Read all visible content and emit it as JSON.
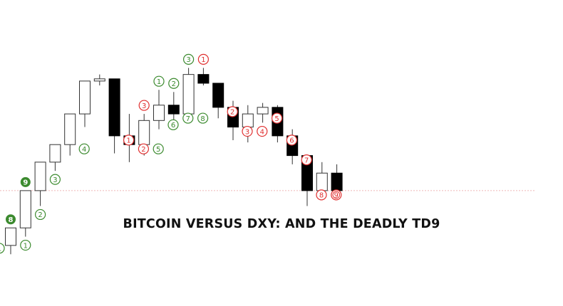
{
  "title": "BITCOIN VERSUS DXY: AND THE DEADLY TD9",
  "chart_data": {
    "type": "candlestick",
    "title": "BITCOIN VERSUS DXY: AND THE DEADLY TD9",
    "xlabel": "",
    "ylabel": "",
    "ylim": [
      0,
      100
    ],
    "grid": false,
    "reference_line": 39,
    "colors": {
      "bull_border": "#333333",
      "bear_fill": "#000000",
      "buy_setup": "#3b8a2e",
      "sell_setup": "#e03030",
      "reference_line": "#e8a0a0"
    },
    "candles": [
      {
        "i": 0,
        "o": 14,
        "h": 22,
        "l": 10,
        "c": 22
      },
      {
        "i": 1,
        "o": 22,
        "h": 39,
        "l": 18,
        "c": 39
      },
      {
        "i": 2,
        "o": 39,
        "h": 52,
        "l": 32,
        "c": 52
      },
      {
        "i": 3,
        "o": 52,
        "h": 60,
        "l": 48,
        "c": 60
      },
      {
        "i": 4,
        "o": 60,
        "h": 74,
        "l": 55,
        "c": 74
      },
      {
        "i": 5,
        "o": 74,
        "h": 89,
        "l": 68,
        "c": 89
      },
      {
        "i": 6,
        "o": 89,
        "h": 92,
        "l": 87,
        "c": 90
      },
      {
        "i": 7,
        "o": 90,
        "h": 90,
        "l": 56,
        "c": 64
      },
      {
        "i": 8,
        "o": 64,
        "h": 74,
        "l": 52,
        "c": 60
      },
      {
        "i": 9,
        "o": 60,
        "h": 74,
        "l": 55,
        "c": 71
      },
      {
        "i": 10,
        "o": 71,
        "h": 85,
        "l": 67,
        "c": 78
      },
      {
        "i": 11,
        "o": 78,
        "h": 84,
        "l": 67,
        "c": 74
      },
      {
        "i": 12,
        "o": 74,
        "h": 95,
        "l": 72,
        "c": 92
      },
      {
        "i": 13,
        "o": 92,
        "h": 95,
        "l": 87,
        "c": 88
      },
      {
        "i": 14,
        "o": 88,
        "h": 88,
        "l": 72,
        "c": 77
      },
      {
        "i": 15,
        "o": 77,
        "h": 80,
        "l": 62,
        "c": 68
      },
      {
        "i": 16,
        "o": 68,
        "h": 78,
        "l": 61,
        "c": 74
      },
      {
        "i": 17,
        "o": 74,
        "h": 79,
        "l": 70,
        "c": 77
      },
      {
        "i": 18,
        "o": 77,
        "h": 78,
        "l": 61,
        "c": 64
      },
      {
        "i": 19,
        "o": 64,
        "h": 67,
        "l": 51,
        "c": 55
      },
      {
        "i": 20,
        "o": 55,
        "h": 55,
        "l": 32,
        "c": 39
      },
      {
        "i": 21,
        "o": 39,
        "h": 52,
        "l": 36,
        "c": 47
      },
      {
        "i": 22,
        "o": 47,
        "h": 51,
        "l": 37,
        "c": 39
      }
    ],
    "td_counts": [
      {
        "candle": 0,
        "label": "1",
        "kind": "buy",
        "style": "outline",
        "pos": "left"
      },
      {
        "candle": 1,
        "label": "1",
        "kind": "buy",
        "style": "outline",
        "pos": "below"
      },
      {
        "candle": 0,
        "label": "8",
        "kind": "buy",
        "style": "filled",
        "pos": "above"
      },
      {
        "candle": 2,
        "label": "2",
        "kind": "buy",
        "style": "outline",
        "pos": "below"
      },
      {
        "candle": 1,
        "label": "9",
        "kind": "buy",
        "style": "filled",
        "pos": "above"
      },
      {
        "candle": 3,
        "label": "3",
        "kind": "buy",
        "style": "outline",
        "pos": "below"
      },
      {
        "candle": 4,
        "label": "4",
        "kind": "buy",
        "style": "outline",
        "pos": "right"
      },
      {
        "candle": 7,
        "label": "1",
        "kind": "sell",
        "style": "outline",
        "pos": "right"
      },
      {
        "candle": 8,
        "label": "2",
        "kind": "sell",
        "style": "outline",
        "pos": "right"
      },
      {
        "candle": 9,
        "label": "5",
        "kind": "buy",
        "style": "outline",
        "pos": "right"
      },
      {
        "candle": 9,
        "label": "3",
        "kind": "sell",
        "style": "outline",
        "pos": "above"
      },
      {
        "candle": 10,
        "label": "6",
        "kind": "buy",
        "style": "outline",
        "pos": "right"
      },
      {
        "candle": 10,
        "label": "1",
        "kind": "buy",
        "style": "outline",
        "pos": "above"
      },
      {
        "candle": 11,
        "label": "7",
        "kind": "buy",
        "style": "outline",
        "pos": "right"
      },
      {
        "candle": 11,
        "label": "2",
        "kind": "buy",
        "style": "outline",
        "pos": "above"
      },
      {
        "candle": 12,
        "label": "8",
        "kind": "buy",
        "style": "outline",
        "pos": "right"
      },
      {
        "candle": 12,
        "label": "3",
        "kind": "buy",
        "style": "outline",
        "pos": "above"
      },
      {
        "candle": 13,
        "label": "1",
        "kind": "sell",
        "style": "outline",
        "pos": "above"
      },
      {
        "candle": 14,
        "label": "2",
        "kind": "sell",
        "style": "outline",
        "pos": "right"
      },
      {
        "candle": 15,
        "label": "3",
        "kind": "sell",
        "style": "outline",
        "pos": "right"
      },
      {
        "candle": 16,
        "label": "4",
        "kind": "sell",
        "style": "outline",
        "pos": "right"
      },
      {
        "candle": 17,
        "label": "5",
        "kind": "sell",
        "style": "outline",
        "pos": "right"
      },
      {
        "candle": 18,
        "label": "6",
        "kind": "sell",
        "style": "outline",
        "pos": "right"
      },
      {
        "candle": 19,
        "label": "7",
        "kind": "sell",
        "style": "outline",
        "pos": "right"
      },
      {
        "candle": 20,
        "label": "8",
        "kind": "sell",
        "style": "outline",
        "pos": "right"
      },
      {
        "candle": 21,
        "label": "9",
        "kind": "sell",
        "style": "double",
        "pos": "right"
      }
    ]
  }
}
